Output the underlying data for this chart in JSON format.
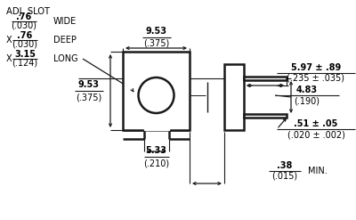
{
  "bg_color": "#ffffff",
  "line_color": "#1a1a1a",
  "text_color": "#000000",
  "adj_slot": "ADJ. SLOT",
  "wide_num": ".76",
  "wide_den": "(.030)",
  "wide_label": "WIDE",
  "deep_x": "X",
  "deep_num": ".76",
  "deep_den": "(.030)",
  "deep_label": "DEEP",
  "long_x": "X",
  "long_num": "3.15",
  "long_den": "(.124)",
  "long_label": "LONG",
  "top_width_num": "9.53",
  "top_width_den": "(.375)",
  "body_h_num": "9.53",
  "body_h_den": "(.375)",
  "bot_width_num": "5.33",
  "bot_width_den": "(.210)",
  "pin_len_num": "5.97 ± .89",
  "pin_len_den": "(.235 ± .035)",
  "pin_sp_num": "4.83",
  "pin_sp_den": "(.190)",
  "pin_th_num": ".51 ± .05",
  "pin_th_den": "(.020 ± .002)",
  "min_num": ".38",
  "min_den": "(.015)",
  "min_label": "MIN."
}
